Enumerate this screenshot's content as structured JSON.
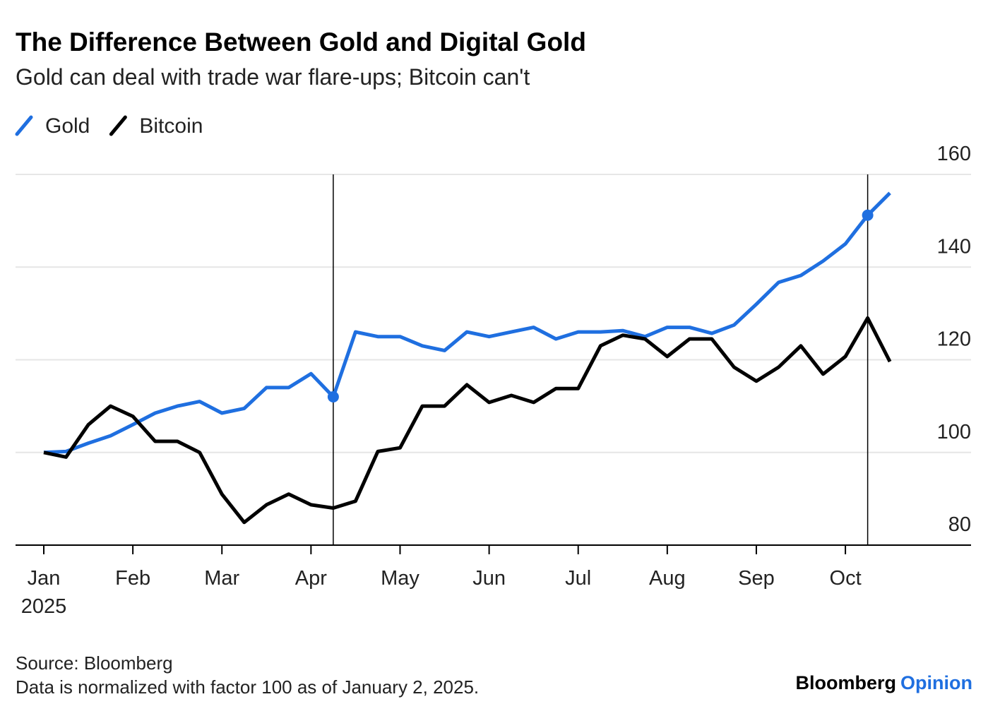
{
  "chart_data": {
    "type": "line",
    "title": "The Difference Between Gold and Digital Gold",
    "subtitle": "Gold can deal with trade war flare-ups; Bitcoin can't",
    "categories": [
      "Jan",
      null,
      null,
      null,
      "Feb",
      null,
      null,
      null,
      "Mar",
      null,
      null,
      null,
      "Apr",
      null,
      null,
      null,
      "May",
      null,
      null,
      null,
      "Jun",
      null,
      null,
      null,
      "Jul",
      null,
      null,
      null,
      "Aug",
      null,
      null,
      null,
      "Sep",
      null,
      null,
      null,
      "Oct",
      null,
      null
    ],
    "x_year_label": "2025",
    "series": [
      {
        "name": "Gold",
        "color": "#1f6fe0",
        "values": [
          100,
          100.2,
          102,
          103.6,
          106,
          108.5,
          110,
          111,
          108.5,
          109.5,
          114,
          114,
          117,
          112,
          126,
          125,
          125,
          123,
          122,
          126,
          125,
          126,
          127,
          124.5,
          126,
          126,
          126.3,
          125,
          127,
          127,
          125.7,
          127.5,
          132,
          136.7,
          138.2,
          141.3,
          145,
          151.2,
          156
        ]
      },
      {
        "name": "Bitcoin",
        "color": "#000000",
        "values": [
          100,
          99,
          106,
          110,
          107.8,
          102.4,
          102.4,
          100,
          91,
          84.9,
          88.7,
          91,
          88.7,
          88,
          89.5,
          100.2,
          101,
          110,
          110,
          114.6,
          110.8,
          112.3,
          110.8,
          113.8,
          113.8,
          123,
          125.3,
          124.5,
          120.7,
          124.5,
          124.5,
          118.4,
          115.4,
          118.4,
          123,
          116.9,
          120.7,
          129,
          119.6
        ]
      }
    ],
    "highlight_indices": [
      13,
      37
    ],
    "ylim": [
      80,
      160
    ],
    "yticks": [
      80,
      100,
      120,
      140,
      160
    ],
    "grid": true,
    "source": "Source: Bloomberg",
    "note": "Data is normalized with factor 100 as of January 2, 2025.",
    "brand": {
      "name": "Bloomberg",
      "section": "Opinion"
    }
  }
}
